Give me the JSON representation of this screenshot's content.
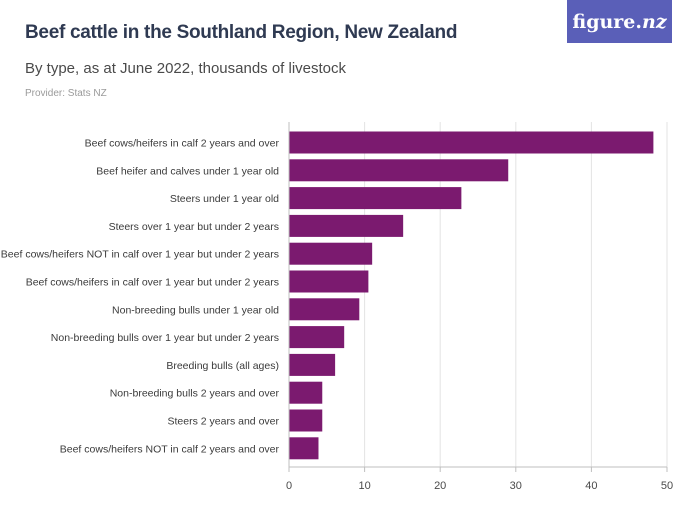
{
  "header": {
    "title": "Beef cattle in the Southland Region, New Zealand",
    "subtitle": "By type, as at June 2022, thousands of livestock",
    "provider": "Provider: Stats NZ",
    "logo_main": "figure.",
    "logo_accent": "nz"
  },
  "colors": {
    "bar": "#7b1a6f",
    "grid": "#e3e3e3",
    "axis": "#bfbfbf",
    "logo_bg": "#5a5fb8"
  },
  "chart_data": {
    "type": "bar",
    "orientation": "horizontal",
    "title": "Beef cattle in the Southland Region, New Zealand",
    "subtitle": "By type, as at June 2022, thousands of livestock",
    "categories": [
      "Beef cows/heifers in calf 2 years and over",
      "Beef heifer and calves under 1 year old",
      "Steers under 1 year old",
      "Steers over 1 year but under 2 years",
      "Beef cows/heifers NOT in calf over 1 year but under 2 years",
      "Beef cows/heifers in calf over 1 year but under 2 years",
      "Non-breeding bulls under 1 year old",
      "Non-breeding bulls over 1 year but under 2 years",
      "Breeding bulls (all ages)",
      "Non-breeding bulls 2 years and over",
      "Steers 2 years and over",
      "Beef cows/heifers NOT in calf 2 years and over"
    ],
    "values": [
      48.2,
      29.0,
      22.8,
      15.1,
      11.0,
      10.5,
      9.3,
      7.3,
      6.1,
      4.4,
      4.4,
      3.9
    ],
    "xlim": [
      0,
      50
    ],
    "xticks": [
      0,
      10,
      20,
      30,
      40,
      50
    ],
    "grid": true
  }
}
